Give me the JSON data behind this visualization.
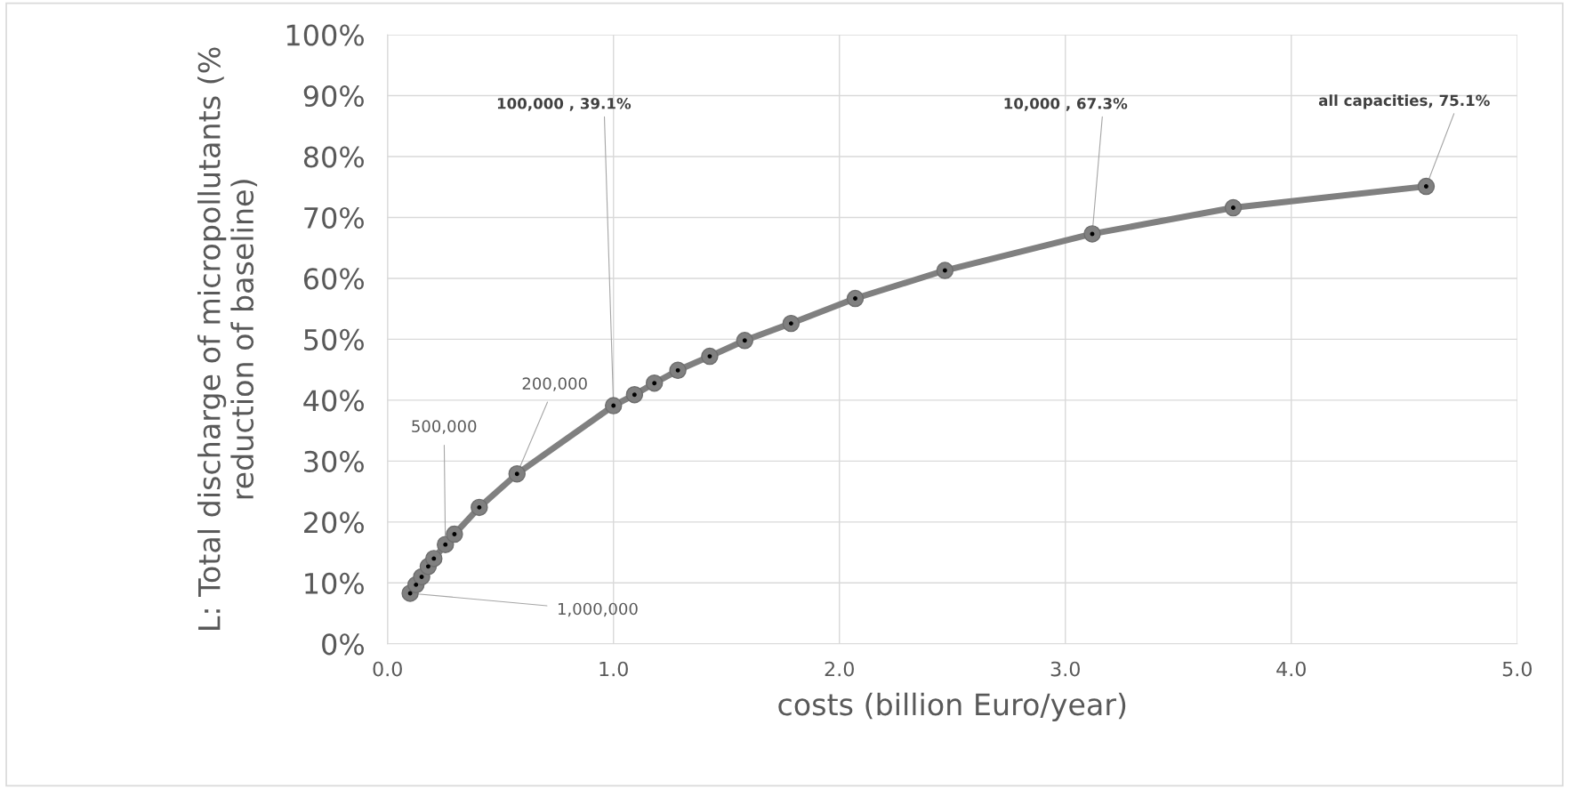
{
  "chart_data": {
    "type": "line",
    "xlabel": "costs (billion Euro/year)",
    "ylabel": "L: Total discharge of micropollutants (% reduction of baseline)",
    "series": [
      {
        "color": "#808080",
        "x": [
          0.1,
          0.126,
          0.151,
          0.18,
          0.205,
          0.256,
          0.296,
          0.406,
          0.573,
          1.0,
          1.093,
          1.181,
          1.285,
          1.426,
          1.581,
          1.786,
          2.07,
          2.467,
          3.119,
          3.743,
          4.597
        ],
        "values": [
          8.3,
          9.7,
          11.0,
          12.7,
          14.0,
          16.3,
          18.0,
          22.4,
          27.9,
          39.1,
          40.9,
          42.8,
          44.9,
          47.2,
          49.8,
          52.6,
          56.7,
          61.3,
          67.3,
          71.6,
          75.1
        ]
      }
    ],
    "xlim": [
      0,
      5
    ],
    "xticks": [
      {
        "value": 0,
        "label": "0.0"
      },
      {
        "value": 1,
        "label": "1.0"
      },
      {
        "value": 2,
        "label": "2.0"
      },
      {
        "value": 3,
        "label": "3.0"
      },
      {
        "value": 4,
        "label": "4.0"
      },
      {
        "value": 5,
        "label": "5.0"
      }
    ],
    "ylim": [
      0,
      100
    ],
    "yticks": [
      {
        "value": 0,
        "label": "0%"
      },
      {
        "value": 10,
        "label": "10%"
      },
      {
        "value": 20,
        "label": "20%"
      },
      {
        "value": 30,
        "label": "30%"
      },
      {
        "value": 40,
        "label": "40%"
      },
      {
        "value": 50,
        "label": "50%"
      },
      {
        "value": 60,
        "label": "60%"
      },
      {
        "value": 70,
        "label": "70%"
      },
      {
        "value": 80,
        "label": "80%"
      },
      {
        "value": 90,
        "label": "90%"
      },
      {
        "value": 100,
        "label": "100%"
      }
    ],
    "grid": true,
    "marker": "circle",
    "line_style": "solid",
    "annotations": [
      {
        "text": "1,000,000",
        "x": 0.1,
        "y": 8.3
      },
      {
        "text": "500,000",
        "x": 0.256,
        "y": 16.3
      },
      {
        "text": "200,000",
        "x": 0.573,
        "y": 27.9
      },
      {
        "text": "100,000 , 39.1%",
        "x": 1.0,
        "y": 39.1
      },
      {
        "text": "10,000 , 67.3%",
        "x": 3.119,
        "y": 67.3
      },
      {
        "text": "all capacities, 75.1%",
        "x": 4.597,
        "y": 75.1
      }
    ]
  }
}
